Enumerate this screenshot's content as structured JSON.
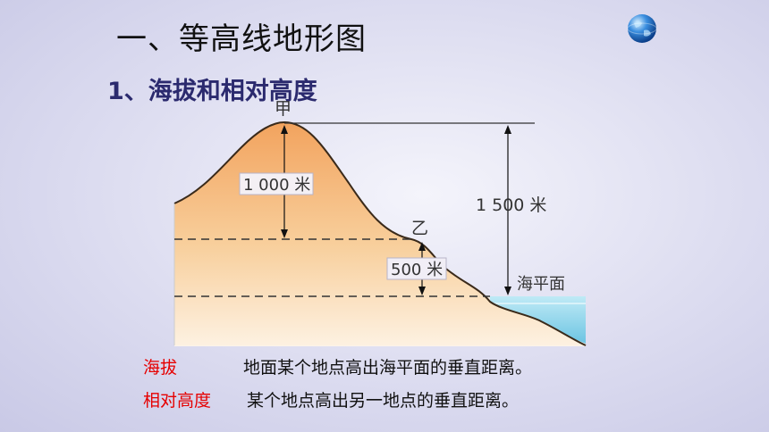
{
  "slide": {
    "title": "一、等高线地形图",
    "subtitle": "1、海拔和相对高度"
  },
  "diagram": {
    "peak_label": "甲",
    "mid_label": "乙",
    "relative_height_label": "1 000 米",
    "mid_height_label": "500 米",
    "altitude_label": "1 500 米",
    "sea_level_label": "海平面"
  },
  "definitions": [
    {
      "term": "海拔",
      "text": "地面某个地点高出海平面的垂直距离。"
    },
    {
      "term": "相对高度",
      "text": "某个地点高出另一地点的垂直距离。"
    }
  ],
  "colors": {
    "title_text": "#111111",
    "subtitle_text": "#2b2a6e",
    "term_text": "#e60000",
    "terrain_top": "#f2a35e",
    "terrain_bottom": "#fdf1e1",
    "sea": "#8fd3ea"
  },
  "icons": {
    "globe": "globe-icon"
  }
}
